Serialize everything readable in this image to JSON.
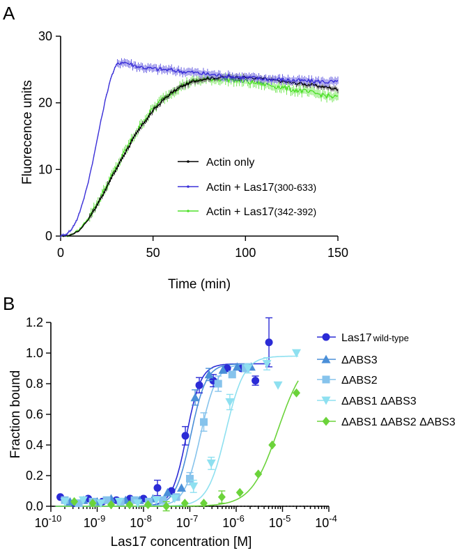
{
  "chart_data": [
    {
      "panel": "A",
      "type": "line",
      "xlabel": "Time (min)",
      "ylabel": "Fluorecence units",
      "xlim": [
        0,
        150
      ],
      "ylim": [
        0,
        30
      ],
      "xticks": [
        0,
        50,
        100,
        150
      ],
      "yticks": [
        0,
        10,
        20,
        30
      ],
      "legend_position": "center-right",
      "series": [
        {
          "name": "Actin only",
          "color": "#000000",
          "x": [
            0,
            5,
            10,
            15,
            20,
            25,
            30,
            35,
            40,
            45,
            50,
            55,
            60,
            65,
            70,
            75,
            80,
            85,
            90,
            95,
            100,
            105,
            110,
            115,
            120,
            125,
            130,
            135,
            140,
            145,
            150
          ],
          "y": [
            0,
            0.1,
            0.8,
            2.5,
            4.8,
            7.4,
            10.0,
            12.6,
            14.9,
            17.0,
            18.8,
            20.3,
            21.5,
            22.4,
            23.0,
            23.5,
            23.7,
            23.8,
            23.9,
            23.9,
            23.8,
            23.7,
            23.6,
            23.4,
            23.2,
            23.0,
            22.9,
            22.7,
            22.5,
            22.3,
            22.0
          ]
        },
        {
          "name": "Actin + Las17(300-633)",
          "name_main": "Actin + Las17",
          "name_sub": "(300-633)",
          "color": "#3b30d8",
          "x": [
            0,
            3,
            6,
            9,
            12,
            15,
            18,
            21,
            24,
            27,
            30,
            33,
            36,
            40,
            45,
            50,
            60,
            70,
            80,
            90,
            100,
            110,
            120,
            130,
            140,
            150
          ],
          "y": [
            0,
            0.3,
            1.0,
            2.6,
            5.0,
            8.2,
            12.0,
            16.2,
            20.2,
            23.6,
            25.6,
            26.2,
            26.0,
            25.6,
            25.3,
            25.1,
            24.9,
            24.6,
            24.3,
            24.0,
            23.8,
            23.6,
            23.5,
            23.3,
            23.2,
            23.1
          ]
        },
        {
          "name": "Actin + Las17(342-392)",
          "name_main": "Actin + Las17",
          "name_sub": "(342-392)",
          "color": "#4fe02a",
          "x": [
            0,
            5,
            10,
            15,
            20,
            25,
            30,
            35,
            40,
            45,
            50,
            55,
            60,
            65,
            70,
            75,
            80,
            85,
            90,
            95,
            100,
            105,
            110,
            115,
            120,
            125,
            130,
            135,
            140,
            145,
            150
          ],
          "y": [
            0,
            0.1,
            0.9,
            2.7,
            5.0,
            7.6,
            10.2,
            12.8,
            15.2,
            17.3,
            19.1,
            20.5,
            21.6,
            22.5,
            23.1,
            23.4,
            23.6,
            23.6,
            23.5,
            23.4,
            23.2,
            23.0,
            22.8,
            22.6,
            22.3,
            22.0,
            21.8,
            21.5,
            21.3,
            21.0,
            20.8
          ]
        }
      ]
    },
    {
      "panel": "B",
      "type": "scatter",
      "xscale": "log",
      "xlabel": "Las17 concentration [M]",
      "ylabel": "Fraction bound",
      "xlim_exp": [
        -10,
        -4
      ],
      "xtick_base": "10",
      "xtick_exps": [
        "-10",
        "-9",
        "-8",
        "-7",
        "-6",
        "-5",
        "-4"
      ],
      "ylim": [
        0,
        1.2
      ],
      "ytick_labels": [
        "0.0",
        "0.2",
        "0.4",
        "0.6",
        "0.8",
        "1.0",
        "1.2"
      ],
      "reference_line": {
        "y": 0,
        "style": "dotted"
      },
      "legend_position": "right",
      "series": [
        {
          "name": "Las17 wild-type",
          "name_main": "Las17",
          "name_sub": "wild-type",
          "marker": "circle",
          "color": "#2b2bd6",
          "fit": {
            "top": 0.93,
            "ec50": 8.5e-08,
            "hill": 2.8
          },
          "points": [
            {
              "x": 1.6e-10,
              "y": 0.06
            },
            {
              "x": 3.2e-10,
              "y": 0.02
            },
            {
              "x": 6.4e-10,
              "y": 0.05
            },
            {
              "x": 1.3e-09,
              "y": 0.03
            },
            {
              "x": 2.6e-09,
              "y": 0.04
            },
            {
              "x": 5.1e-09,
              "y": 0.05
            },
            {
              "x": 1e-08,
              "y": 0.05
            },
            {
              "x": 2e-08,
              "y": 0.12,
              "err": 0.05
            },
            {
              "x": 4e-08,
              "y": 0.1
            },
            {
              "x": 8e-08,
              "y": 0.46,
              "err": 0.06
            },
            {
              "x": 1.6e-07,
              "y": 0.79,
              "err": 0.05
            },
            {
              "x": 3.2e-07,
              "y": 0.82,
              "err": 0.04
            },
            {
              "x": 6.4e-07,
              "y": 0.9
            },
            {
              "x": 1.3e-06,
              "y": 0.9
            },
            {
              "x": 2.6e-06,
              "y": 0.82,
              "err": 0.03
            },
            {
              "x": 5.1e-06,
              "y": 1.07,
              "err": 0.16
            }
          ]
        },
        {
          "name": "ΔABS3",
          "marker": "triangle-up",
          "color": "#4a8fd8",
          "fit": {
            "top": 0.93,
            "ec50": 1.05e-07,
            "hill": 2.6
          },
          "points": [
            {
              "x": 2.6e-10,
              "y": 0.03
            },
            {
              "x": 5.1e-10,
              "y": 0.04
            },
            {
              "x": 1e-09,
              "y": 0.03
            },
            {
              "x": 2e-09,
              "y": 0.05
            },
            {
              "x": 4.1e-09,
              "y": 0.04
            },
            {
              "x": 8.2e-09,
              "y": 0.04
            },
            {
              "x": 1.6e-08,
              "y": 0.05
            },
            {
              "x": 3.3e-08,
              "y": 0.09
            },
            {
              "x": 6.6e-08,
              "y": 0.12
            },
            {
              "x": 1.3e-07,
              "y": 0.71,
              "err": 0.05
            },
            {
              "x": 2.6e-07,
              "y": 0.86,
              "err": 0.04
            },
            {
              "x": 5.2e-07,
              "y": 0.89
            },
            {
              "x": 1.05e-06,
              "y": 0.91
            },
            {
              "x": 2.1e-06,
              "y": 0.91
            }
          ]
        },
        {
          "name": "ΔABS2",
          "marker": "square",
          "color": "#86c3ec",
          "fit": {
            "top": 0.93,
            "ec50": 1.7e-07,
            "hill": 2.5
          },
          "points": [
            {
              "x": 2e-10,
              "y": 0.04
            },
            {
              "x": 4e-10,
              "y": 0.02
            },
            {
              "x": 8e-10,
              "y": 0.03
            },
            {
              "x": 1.6e-09,
              "y": 0.04
            },
            {
              "x": 3.2e-09,
              "y": 0.03
            },
            {
              "x": 6.4e-09,
              "y": 0.04
            },
            {
              "x": 1.3e-08,
              "y": 0.03
            },
            {
              "x": 2.6e-08,
              "y": 0.04
            },
            {
              "x": 5.1e-08,
              "y": 0.06
            },
            {
              "x": 1e-07,
              "y": 0.18,
              "err": 0.04
            },
            {
              "x": 2e-07,
              "y": 0.55,
              "err": 0.06
            },
            {
              "x": 4.1e-07,
              "y": 0.8,
              "err": 0.05
            },
            {
              "x": 8.2e-07,
              "y": 0.86
            },
            {
              "x": 1.6e-06,
              "y": 0.9
            }
          ]
        },
        {
          "name": "ΔABS1 ΔABS3",
          "marker": "triangle-down",
          "color": "#8ee0f0",
          "fit": {
            "top": 0.98,
            "ec50": 6e-07,
            "hill": 2.2
          },
          "points": [
            {
              "x": 2e-10,
              "y": 0.03
            },
            {
              "x": 5e-10,
              "y": 0.04
            },
            {
              "x": 1.2e-09,
              "y": 0.02
            },
            {
              "x": 3e-09,
              "y": 0.03
            },
            {
              "x": 7.5e-09,
              "y": 0.02
            },
            {
              "x": 1.9e-08,
              "y": 0.04
            },
            {
              "x": 4.7e-08,
              "y": 0.05
            },
            {
              "x": 1.2e-07,
              "y": 0.13,
              "err": 0.04
            },
            {
              "x": 2.9e-07,
              "y": 0.28,
              "err": 0.04
            },
            {
              "x": 7.3e-07,
              "y": 0.68,
              "err": 0.05
            },
            {
              "x": 1.8e-06,
              "y": 0.9,
              "err": 0.03
            },
            {
              "x": 4.6e-06,
              "y": 0.93,
              "err": 0.04
            },
            {
              "x": 8e-06,
              "y": 0.79
            },
            {
              "x": 2e-05,
              "y": 1.0
            }
          ]
        },
        {
          "name": "ΔABS1 ΔABS2 ΔABS3",
          "marker": "diamond",
          "color": "#6bd33a",
          "fit": {
            "top": 1.0,
            "ec50": 8e-06,
            "hill": 1.5
          },
          "points": [
            {
              "x": 3.2e-10,
              "y": 0.03
            },
            {
              "x": 8e-10,
              "y": 0.02
            },
            {
              "x": 2e-09,
              "y": 0.01
            },
            {
              "x": 5e-09,
              "y": 0.01
            },
            {
              "x": 1.25e-08,
              "y": 0.01
            },
            {
              "x": 3.1e-08,
              "y": 0.0,
              "err": 0.03
            },
            {
              "x": 7.8e-08,
              "y": 0.02
            },
            {
              "x": 2e-07,
              "y": 0.02
            },
            {
              "x": 4.9e-07,
              "y": 0.06,
              "err": 0.04
            },
            {
              "x": 1.2e-06,
              "y": 0.09
            },
            {
              "x": 3e-06,
              "y": 0.21
            },
            {
              "x": 6e-06,
              "y": 0.4
            },
            {
              "x": 2e-05,
              "y": 0.74
            }
          ]
        }
      ]
    }
  ],
  "labels": {
    "panel_a": "A",
    "panel_b": "B"
  }
}
